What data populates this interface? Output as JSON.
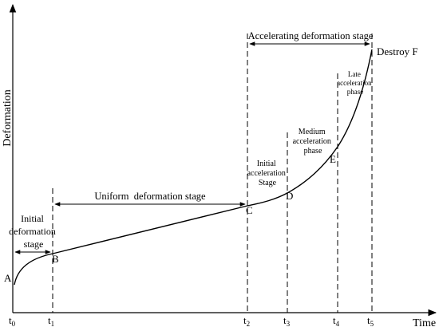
{
  "axes": {
    "y_label": "Deformation",
    "x_label": "Time"
  },
  "ticks": [
    {
      "base": "t",
      "sub": "0"
    },
    {
      "base": "t",
      "sub": "1"
    },
    {
      "base": "t",
      "sub": "2"
    },
    {
      "base": "t",
      "sub": "3"
    },
    {
      "base": "t",
      "sub": "4"
    },
    {
      "base": "t",
      "sub": "5"
    }
  ],
  "points": {
    "a": "A",
    "b": "B",
    "c": "C",
    "d": "D",
    "e": "E",
    "f": "Destroy F"
  },
  "stages": {
    "initial": [
      "Initial",
      "deformation",
      "stage"
    ],
    "uniform": "Uniform  deformation stage",
    "accelerating": "Accelerating deformation stage",
    "initial_acceleration": [
      "Initial",
      "acceleration",
      "Stage"
    ],
    "medium_acceleration": [
      "Medium",
      "acceleration",
      "phase"
    ],
    "late_acceleration": [
      "Late",
      "acceleration",
      "phase"
    ]
  }
}
